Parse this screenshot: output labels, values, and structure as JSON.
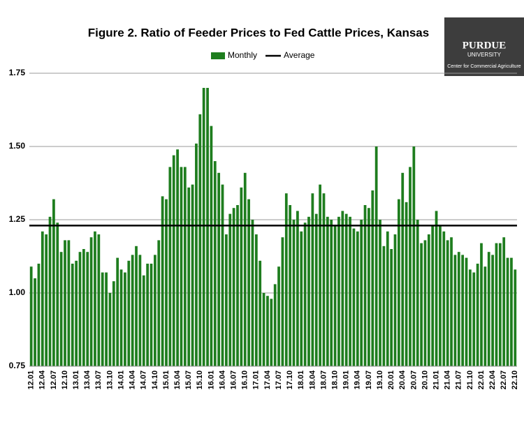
{
  "chart_data": {
    "type": "bar",
    "title": "Figure 2. Ratio of Feeder Prices to Fed Cattle Prices, Kansas",
    "logo": {
      "name": "PURDUE",
      "subname": "UNIVERSITY",
      "tagline": "Center for Commercial Agriculture"
    },
    "categories": [
      "12.01",
      null,
      null,
      "12.04",
      null,
      null,
      "12.07",
      null,
      null,
      "12.10",
      null,
      null,
      "13.01",
      null,
      null,
      "13.04",
      null,
      null,
      "13.07",
      null,
      null,
      "13.10",
      null,
      null,
      "14.01",
      null,
      null,
      "14.04",
      null,
      null,
      "14.07",
      null,
      null,
      "14.10",
      null,
      null,
      "15.01",
      null,
      null,
      "15.04",
      null,
      null,
      "15.07",
      null,
      null,
      "15.10",
      null,
      null,
      "16.01",
      null,
      null,
      "16.04",
      null,
      null,
      "16.07",
      null,
      null,
      "16.10",
      null,
      null,
      "17.01",
      null,
      null,
      "17.04",
      null,
      null,
      "17.07",
      null,
      null,
      "17.10",
      null,
      null,
      "18.01",
      null,
      null,
      "18.04",
      null,
      null,
      "18.07",
      null,
      null,
      "18.10",
      null,
      null,
      "19.01",
      null,
      null,
      "19.04",
      null,
      null,
      "19.07",
      null,
      null,
      "19.10",
      null,
      null,
      "20.01",
      null,
      null,
      "20.04",
      null,
      null,
      "20.07",
      null,
      null,
      "20.10",
      null,
      null,
      "21.01",
      null,
      null,
      "21.04",
      null,
      null,
      "21.07",
      null,
      null,
      "21.10",
      null,
      null,
      "22.01",
      null,
      null,
      "22.04",
      null,
      null,
      "22.07",
      null,
      null,
      "22.10"
    ],
    "series": [
      {
        "name": "Monthly",
        "color": "#1e7d1e",
        "values": [
          1.09,
          1.05,
          1.1,
          1.21,
          1.2,
          1.26,
          1.32,
          1.24,
          1.14,
          1.18,
          1.18,
          1.1,
          1.11,
          1.14,
          1.15,
          1.14,
          1.19,
          1.21,
          1.2,
          1.07,
          1.07,
          1.0,
          1.04,
          1.12,
          1.08,
          1.07,
          1.11,
          1.13,
          1.16,
          1.13,
          1.06,
          1.1,
          1.1,
          1.13,
          1.18,
          1.33,
          1.32,
          1.43,
          1.47,
          1.49,
          1.43,
          1.43,
          1.36,
          1.37,
          1.51,
          1.61,
          1.7,
          1.7,
          1.57,
          1.45,
          1.41,
          1.37,
          1.2,
          1.27,
          1.29,
          1.3,
          1.36,
          1.41,
          1.32,
          1.25,
          1.2,
          1.11,
          1.0,
          0.99,
          0.98,
          1.03,
          1.09,
          1.19,
          1.34,
          1.3,
          1.25,
          1.28,
          1.21,
          1.24,
          1.26,
          1.34,
          1.27,
          1.37,
          1.34,
          1.26,
          1.25,
          1.23,
          1.26,
          1.28,
          1.27,
          1.26,
          1.22,
          1.21,
          1.25,
          1.3,
          1.29,
          1.35,
          1.5,
          1.25,
          1.16,
          1.21,
          1.15,
          1.2,
          1.32,
          1.41,
          1.31,
          1.43,
          1.5,
          1.25,
          1.17,
          1.18,
          1.2,
          1.23,
          1.28,
          1.23,
          1.21,
          1.18,
          1.19,
          1.13,
          1.14,
          1.13,
          1.12,
          1.08,
          1.07,
          1.1,
          1.17,
          1.09,
          1.14,
          1.13,
          1.17,
          1.17,
          1.19,
          1.12,
          1.12,
          1.08
        ]
      }
    ],
    "average_line": {
      "name": "Average",
      "value": 1.23,
      "color": "#000000"
    },
    "ylim": [
      0.75,
      1.75
    ],
    "yticks": [
      0.75,
      {
        "value": 1,
        "label": "1.00"
      },
      1.25,
      {
        "value": 1.5,
        "label": "1.50"
      },
      1.75
    ],
    "grid": true
  }
}
